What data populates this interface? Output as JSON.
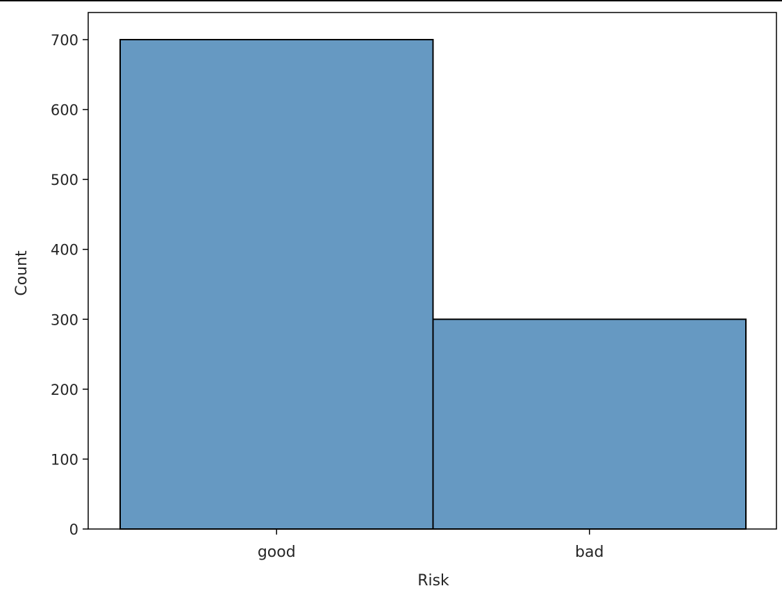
{
  "chart_data": {
    "type": "bar",
    "title": "",
    "xlabel": "Risk",
    "ylabel": "Count",
    "categories": [
      "good",
      "bad"
    ],
    "values": [
      700,
      300
    ],
    "ylim": [
      0,
      700
    ],
    "yticks": [
      "0",
      "100",
      "200",
      "300",
      "400",
      "500",
      "600",
      "700"
    ],
    "grid": false,
    "legend": "none",
    "bar_color": "#6699c2",
    "edge_color": "#000000"
  }
}
